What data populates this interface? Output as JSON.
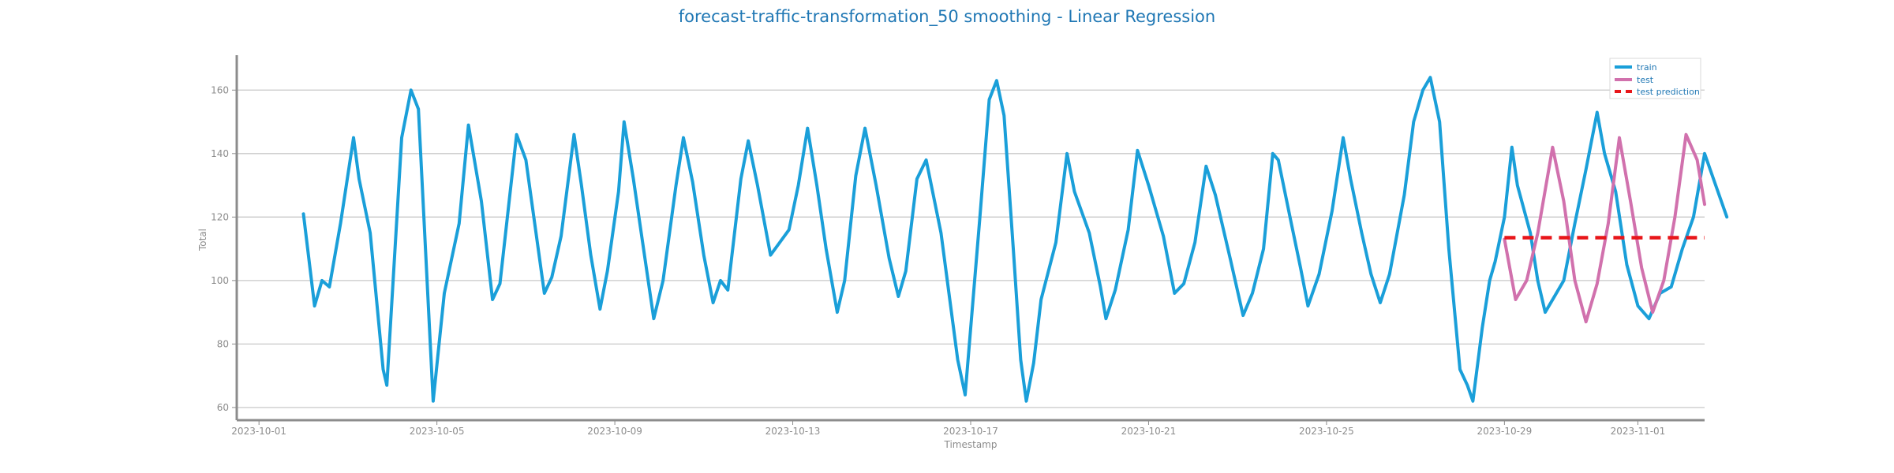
{
  "chart_data": {
    "type": "line",
    "title": "forecast-traffic-transformation_50 smoothing - Linear Regression",
    "xlabel": "Timestamp",
    "ylabel": "Total",
    "xlim": [
      "2023-09-30T12:00",
      "2023-11-02T12:00"
    ],
    "ylim": [
      56,
      171
    ],
    "x_ticks": [
      "2023-10-01",
      "2023-10-05",
      "2023-10-09",
      "2023-10-13",
      "2023-10-17",
      "2023-10-21",
      "2023-10-25",
      "2023-10-29",
      "2023-11-01"
    ],
    "y_ticks": [
      60,
      80,
      100,
      120,
      140,
      160
    ],
    "grid": "horizontal",
    "legend_position": "top-right",
    "colors": {
      "train": "#1a9fd9",
      "test": "#d171ad",
      "test_prediction": "#e8161a",
      "axis": "#8c8c8c",
      "grid": "#c8c8c8"
    },
    "series": [
      {
        "name": "train",
        "style": "solid",
        "points": [
          [
            "2023-10-02T00:00",
            121
          ],
          [
            "2023-10-02T06:00",
            92
          ],
          [
            "2023-10-02T10:00",
            100
          ],
          [
            "2023-10-02T14:00",
            98
          ],
          [
            "2023-10-02T20:00",
            118
          ],
          [
            "2023-10-03T03:00",
            145
          ],
          [
            "2023-10-03T06:00",
            132
          ],
          [
            "2023-10-03T12:00",
            115
          ],
          [
            "2023-10-03T19:00",
            72
          ],
          [
            "2023-10-03T21:00",
            67
          ],
          [
            "2023-10-04T05:00",
            145
          ],
          [
            "2023-10-04T10:00",
            160
          ],
          [
            "2023-10-04T14:00",
            154
          ],
          [
            "2023-10-04T22:00",
            62
          ],
          [
            "2023-10-05T04:00",
            96
          ],
          [
            "2023-10-05T12:00",
            118
          ],
          [
            "2023-10-05T17:00",
            149
          ],
          [
            "2023-10-06T00:00",
            125
          ],
          [
            "2023-10-06T06:00",
            94
          ],
          [
            "2023-10-06T10:00",
            99
          ],
          [
            "2023-10-06T19:00",
            146
          ],
          [
            "2023-10-07T00:00",
            138
          ],
          [
            "2023-10-07T05:00",
            117
          ],
          [
            "2023-10-07T10:00",
            96
          ],
          [
            "2023-10-07T14:00",
            101
          ],
          [
            "2023-10-07T19:00",
            114
          ],
          [
            "2023-10-08T02:00",
            146
          ],
          [
            "2023-10-08T06:00",
            130
          ],
          [
            "2023-10-08T11:00",
            108
          ],
          [
            "2023-10-08T16:00",
            91
          ],
          [
            "2023-10-08T20:00",
            103
          ],
          [
            "2023-10-09T02:00",
            128
          ],
          [
            "2023-10-09T05:00",
            150
          ],
          [
            "2023-10-09T10:00",
            132
          ],
          [
            "2023-10-09T15:00",
            112
          ],
          [
            "2023-10-09T21:00",
            88
          ],
          [
            "2023-10-10T02:00",
            100
          ],
          [
            "2023-10-10T09:00",
            130
          ],
          [
            "2023-10-10T13:00",
            145
          ],
          [
            "2023-10-10T18:00",
            131
          ],
          [
            "2023-10-11T00:00",
            108
          ],
          [
            "2023-10-11T05:00",
            93
          ],
          [
            "2023-10-11T09:00",
            100
          ],
          [
            "2023-10-11T13:00",
            97
          ],
          [
            "2023-10-11T20:00",
            132
          ],
          [
            "2023-10-12T00:00",
            144
          ],
          [
            "2023-10-12T05:00",
            130
          ],
          [
            "2023-10-12T12:00",
            108
          ],
          [
            "2023-10-12T17:00",
            112
          ],
          [
            "2023-10-12T22:00",
            116
          ],
          [
            "2023-10-13T03:00",
            130
          ],
          [
            "2023-10-13T08:00",
            148
          ],
          [
            "2023-10-13T13:00",
            130
          ],
          [
            "2023-10-13T18:00",
            110
          ],
          [
            "2023-10-14T00:00",
            90
          ],
          [
            "2023-10-14T04:00",
            100
          ],
          [
            "2023-10-14T10:00",
            133
          ],
          [
            "2023-10-14T15:00",
            148
          ],
          [
            "2023-10-14T21:00",
            130
          ],
          [
            "2023-10-15T04:00",
            107
          ],
          [
            "2023-10-15T09:00",
            95
          ],
          [
            "2023-10-15T13:00",
            103
          ],
          [
            "2023-10-15T19:00",
            132
          ],
          [
            "2023-10-16T00:00",
            138
          ],
          [
            "2023-10-16T08:00",
            115
          ],
          [
            "2023-10-16T17:00",
            75
          ],
          [
            "2023-10-16T21:00",
            64
          ],
          [
            "2023-10-17T05:00",
            120
          ],
          [
            "2023-10-17T10:00",
            157
          ],
          [
            "2023-10-17T14:00",
            163
          ],
          [
            "2023-10-17T18:00",
            152
          ],
          [
            "2023-10-17T23:00",
            110
          ],
          [
            "2023-10-18T03:00",
            75
          ],
          [
            "2023-10-18T06:00",
            62
          ],
          [
            "2023-10-18T10:00",
            74
          ],
          [
            "2023-10-18T14:00",
            94
          ],
          [
            "2023-10-18T22:00",
            112
          ],
          [
            "2023-10-19T04:00",
            140
          ],
          [
            "2023-10-19T08:00",
            128
          ],
          [
            "2023-10-19T16:00",
            115
          ],
          [
            "2023-10-19T22:00",
            98
          ],
          [
            "2023-10-20T01:00",
            88
          ],
          [
            "2023-10-20T06:00",
            97
          ],
          [
            "2023-10-20T13:00",
            116
          ],
          [
            "2023-10-20T18:00",
            141
          ],
          [
            "2023-10-21T00:00",
            130
          ],
          [
            "2023-10-21T08:00",
            114
          ],
          [
            "2023-10-21T14:00",
            96
          ],
          [
            "2023-10-21T19:00",
            99
          ],
          [
            "2023-10-22T01:00",
            112
          ],
          [
            "2023-10-22T07:00",
            136
          ],
          [
            "2023-10-22T12:00",
            127
          ],
          [
            "2023-10-22T20:00",
            107
          ],
          [
            "2023-10-23T03:00",
            89
          ],
          [
            "2023-10-23T08:00",
            96
          ],
          [
            "2023-10-23T14:00",
            110
          ],
          [
            "2023-10-23T19:00",
            140
          ],
          [
            "2023-10-23T22:00",
            138
          ],
          [
            "2023-10-24T05:00",
            118
          ],
          [
            "2023-10-24T10:00",
            104
          ],
          [
            "2023-10-24T14:00",
            92
          ],
          [
            "2023-10-24T20:00",
            102
          ],
          [
            "2023-10-25T03:00",
            122
          ],
          [
            "2023-10-25T09:00",
            145
          ],
          [
            "2023-10-25T13:00",
            132
          ],
          [
            "2023-10-25T19:00",
            115
          ],
          [
            "2023-10-26T00:00",
            102
          ],
          [
            "2023-10-26T05:00",
            93
          ],
          [
            "2023-10-26T10:00",
            102
          ],
          [
            "2023-10-26T18:00",
            127
          ],
          [
            "2023-10-26T23:00",
            150
          ],
          [
            "2023-10-27T04:00",
            160
          ],
          [
            "2023-10-27T08:00",
            164
          ],
          [
            "2023-10-27T13:00",
            150
          ],
          [
            "2023-10-27T18:00",
            110
          ],
          [
            "2023-10-28T00:00",
            72
          ],
          [
            "2023-10-28T04:00",
            67
          ],
          [
            "2023-10-28T07:00",
            62
          ],
          [
            "2023-10-28T12:00",
            85
          ],
          [
            "2023-10-28T16:00",
            100
          ],
          [
            "2023-10-28T19:00",
            106
          ],
          [
            "2023-10-29T00:00",
            120
          ],
          [
            "2023-10-29T04:00",
            142
          ],
          [
            "2023-10-29T07:00",
            130
          ],
          [
            "2023-10-29T14:00",
            115
          ],
          [
            "2023-10-29T18:00",
            100
          ],
          [
            "2023-10-29T22:00",
            90
          ],
          [
            "2023-10-30T03:00",
            95
          ],
          [
            "2023-10-30T08:00",
            100
          ],
          [
            "2023-10-30T14:00",
            118
          ],
          [
            "2023-10-30T20:00",
            135
          ],
          [
            "2023-10-31T02:00",
            153
          ],
          [
            "2023-10-31T06:00",
            140
          ],
          [
            "2023-10-31T12:00",
            128
          ],
          [
            "2023-10-31T18:00",
            105
          ],
          [
            "2023-11-01T00:00",
            92
          ],
          [
            "2023-11-01T06:00",
            88
          ],
          [
            "2023-11-01T12:00",
            96
          ],
          [
            "2023-11-01T18:00",
            98
          ],
          [
            "2023-11-02T00:00",
            110
          ],
          [
            "2023-11-02T06:00",
            120
          ],
          [
            "2023-11-02T12:00",
            140
          ],
          [
            "2023-11-02T18:00",
            130
          ],
          [
            "2023-11-03T00:00",
            120
          ]
        ]
      },
      {
        "name": "test",
        "style": "solid",
        "points": [
          [
            "2023-10-29T00:00",
            113
          ],
          [
            "2023-10-29T06:00",
            94
          ],
          [
            "2023-10-29T12:00",
            100
          ],
          [
            "2023-10-29T18:00",
            115
          ],
          [
            "2023-10-30T02:00",
            142
          ],
          [
            "2023-10-30T08:00",
            125
          ],
          [
            "2023-10-30T14:00",
            100
          ],
          [
            "2023-10-30T20:00",
            87
          ],
          [
            "2023-10-31T02:00",
            99
          ],
          [
            "2023-10-31T08:00",
            118
          ],
          [
            "2023-10-31T14:00",
            145
          ],
          [
            "2023-10-31T20:00",
            125
          ],
          [
            "2023-11-01T02:00",
            104
          ],
          [
            "2023-11-01T08:00",
            90
          ],
          [
            "2023-11-01T14:00",
            100
          ],
          [
            "2023-11-01T20:00",
            120
          ],
          [
            "2023-11-02T02:00",
            146
          ],
          [
            "2023-11-02T08:00",
            138
          ],
          [
            "2023-11-02T12:00",
            124
          ]
        ]
      },
      {
        "name": "test prediction",
        "style": "dashed",
        "points": [
          [
            "2023-10-29T00:00",
            113.5
          ],
          [
            "2023-11-02T12:00",
            113.5
          ]
        ]
      }
    ]
  }
}
